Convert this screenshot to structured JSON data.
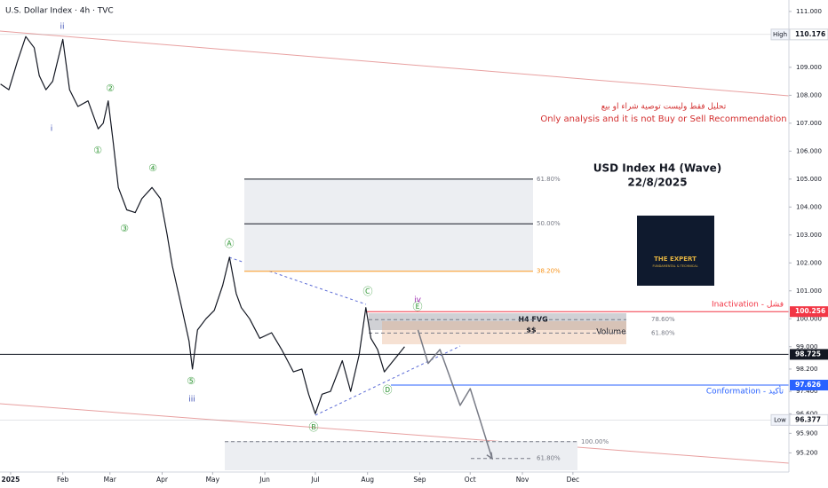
{
  "chart_data": {
    "type": "line",
    "title": "U.S. Dollar Index · 4h · TVC",
    "x": [
      -6,
      -1,
      4,
      9,
      14,
      17,
      21,
      25,
      31,
      35,
      40,
      46,
      52,
      55,
      58,
      61,
      64,
      69,
      74,
      78,
      84,
      89,
      93,
      96,
      102,
      106,
      108,
      111,
      116,
      121,
      126,
      130,
      134,
      137,
      142,
      148,
      155,
      161,
      168,
      173,
      177,
      181,
      185,
      190,
      197,
      202,
      207,
      211,
      214,
      218,
      222,
      226,
      230,
      234
    ],
    "series": [
      {
        "color": "#131722",
        "values": [
          108.4,
          108.2,
          109.2,
          110.1,
          109.7,
          108.7,
          108.2,
          108.5,
          110.0,
          108.2,
          107.6,
          107.8,
          106.8,
          107.0,
          107.8,
          106.3,
          104.7,
          103.9,
          103.8,
          104.3,
          104.7,
          104.3,
          103.0,
          101.9,
          100.3,
          99.2,
          98.2,
          99.6,
          100.0,
          100.3,
          101.2,
          102.2,
          100.9,
          100.4,
          100.0,
          99.3,
          99.5,
          98.9,
          98.1,
          98.2,
          97.3,
          96.6,
          97.3,
          97.4,
          98.5,
          97.4,
          98.7,
          100.4,
          99.3,
          98.9,
          98.1,
          98.4,
          98.7,
          99.0
        ]
      },
      {
        "color": "#787b86",
        "x": [
          242,
          248,
          255,
          267,
          273,
          286
        ],
        "values": [
          99.6,
          98.4,
          98.9,
          96.9,
          97.5,
          95.0
        ]
      }
    ],
    "xlim": [
      -6.3,
      462.3
    ],
    "ylim": [
      94.26,
      111.41
    ],
    "xticks": [
      {
        "value": 0,
        "label": "2025"
      },
      {
        "value": 31,
        "label": "Feb"
      },
      {
        "value": 59,
        "label": "Mar"
      },
      {
        "value": 90,
        "label": "Apr"
      },
      {
        "value": 120,
        "label": "May"
      },
      {
        "value": 151,
        "label": "Jun"
      },
      {
        "value": 181,
        "label": "Jul"
      },
      {
        "value": 212,
        "label": "Aug"
      },
      {
        "value": 243,
        "label": "Sep"
      },
      {
        "value": 273,
        "label": "Oct"
      },
      {
        "value": 304,
        "label": "Nov"
      },
      {
        "value": 334,
        "label": "Dec"
      }
    ],
    "yticks": [
      {
        "value": 111,
        "label": "111.000"
      },
      {
        "value": 109,
        "label": "109.000"
      },
      {
        "value": 108,
        "label": "108.000"
      },
      {
        "value": 107,
        "label": "107.000"
      },
      {
        "value": 106,
        "label": "106.000"
      },
      {
        "value": 105,
        "label": "105.000"
      },
      {
        "value": 104,
        "label": "104.000"
      },
      {
        "value": 103,
        "label": "103.000"
      },
      {
        "value": 102,
        "label": "102.000"
      },
      {
        "value": 101,
        "label": "101.000"
      },
      {
        "value": 100,
        "label": "100.000"
      },
      {
        "value": 99,
        "label": "99.000"
      },
      {
        "value": 98.2,
        "label": "98.200"
      },
      {
        "value": 97.4,
        "label": "97.400"
      },
      {
        "value": 96.6,
        "label": "96.600"
      },
      {
        "value": 95.9,
        "label": "95.900"
      },
      {
        "value": 95.2,
        "label": "95.200"
      }
    ],
    "levels": [
      {
        "label": "High",
        "style": "tag",
        "value": 110.176,
        "color": "#9598a1"
      },
      {
        "label": "Inactivation - فشل",
        "style": "text",
        "value": 100.256,
        "color": "#f23645"
      },
      {
        "value": 98.725,
        "color": "#131722"
      },
      {
        "label": "Conformation - تأكيد",
        "style": "text",
        "value": 97.626,
        "color": "#2962ff"
      },
      {
        "label": "Low",
        "style": "tag",
        "value": 96.377,
        "color": "#9598a1"
      }
    ],
    "fib_upper": [
      {
        "value": 105.0,
        "label": "61.80%",
        "color": "#131722"
      },
      {
        "value": 103.4,
        "label": "50.00%",
        "color": "#131722"
      },
      {
        "value": 101.7,
        "label": "38.20%",
        "color": "#f7931a"
      }
    ],
    "fib_fvg": [
      {
        "value": 99.97,
        "label": "78.60%"
      },
      {
        "value": 99.49,
        "label": "61.80%"
      }
    ],
    "fib_lower": [
      {
        "value": 95.6,
        "label": "100.00%"
      },
      {
        "value": 95.0,
        "label": "61.80%"
      }
    ],
    "waves": [
      "ii",
      "i",
      "①",
      "②",
      "③",
      "④",
      "⑤",
      "iii",
      "Ⓐ",
      "Ⓑ",
      "Ⓒ",
      "Ⓓ",
      "Ⓔ",
      "iv"
    ],
    "notes": {
      "disclaimer_ar": "تحليل فقط وليست توصية شراء او بيع",
      "disclaimer_en": "Only analysis and it is not Buy or Sell Recommendation",
      "heading": "USD Index H4 (Wave)",
      "date": "22/8/2025",
      "logo": "THE EXPERT",
      "logo_sub": "FUNDAMENTAL & TECHNICAL",
      "fvg": "H4 FVG",
      "liquidity": "$$",
      "volume": "Volume"
    }
  }
}
